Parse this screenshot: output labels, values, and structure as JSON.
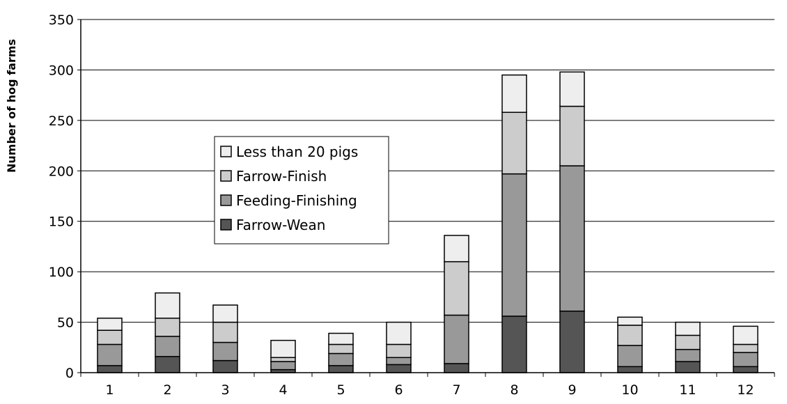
{
  "chart_data": {
    "type": "bar",
    "stacked": true,
    "title": "",
    "xlabel": "",
    "ylabel": "Number of hog farms",
    "ylim": [
      0,
      350
    ],
    "yticks": [
      0,
      50,
      100,
      150,
      200,
      250,
      300,
      350
    ],
    "grid": true,
    "legend": "inside-center-left",
    "categories": [
      "1",
      "2",
      "3",
      "4",
      "5",
      "6",
      "7",
      "8",
      "9",
      "10",
      "11",
      "12"
    ],
    "series": [
      {
        "name": "Farrow-Wean",
        "color": "#555555",
        "values": [
          7,
          16,
          12,
          3,
          7,
          8,
          9,
          56,
          61,
          6,
          11,
          6
        ]
      },
      {
        "name": "Feeding-Finishing",
        "color": "#999999",
        "values": [
          21,
          20,
          18,
          8,
          12,
          7,
          48,
          141,
          144,
          21,
          12,
          14
        ]
      },
      {
        "name": "Farrow-Finish",
        "color": "#cccccc",
        "values": [
          14,
          18,
          20,
          4,
          9,
          13,
          53,
          61,
          59,
          20,
          14,
          8
        ]
      },
      {
        "name": "Less than 20 pigs",
        "color": "#eeeeee",
        "values": [
          12,
          25,
          17,
          17,
          11,
          22,
          26,
          37,
          34,
          8,
          13,
          18
        ]
      }
    ]
  }
}
